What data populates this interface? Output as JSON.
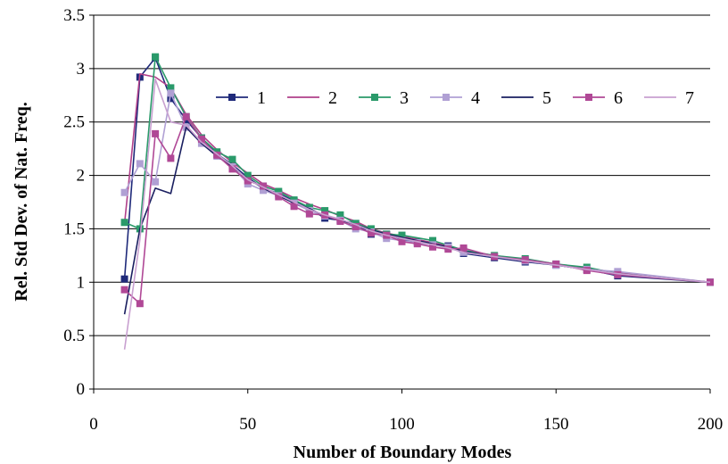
{
  "chart_data": {
    "type": "line",
    "title": "",
    "xlabel": "Number of Boundary Modes",
    "ylabel": "Rel. Std Dev. of Nat. Freq.",
    "xlim": [
      0,
      200
    ],
    "ylim": [
      0,
      3.5
    ],
    "xticks": [
      0,
      50,
      100,
      150,
      200
    ],
    "yticks": [
      0,
      0.5,
      1,
      1.5,
      2,
      2.5,
      3,
      3.5
    ],
    "xtick_labels": [
      "0",
      "50",
      "100",
      "150",
      "200"
    ],
    "ytick_labels": [
      "0",
      "0.5",
      "1",
      "1.5",
      "2",
      "2.5",
      "3",
      "3.5"
    ],
    "grid": "horizontal",
    "legend_position": "top-right",
    "series": [
      {
        "name": "1",
        "color": "#1f2a7a",
        "marker": "square",
        "x": [
          10,
          15,
          20,
          25,
          30,
          35,
          40,
          45,
          50,
          55,
          60,
          65,
          70,
          75,
          80,
          85,
          90,
          95,
          100,
          105,
          110,
          115,
          120,
          130,
          140,
          150,
          160,
          170,
          200
        ],
        "y": [
          1.03,
          2.92,
          3.1,
          2.72,
          2.52,
          2.35,
          2.2,
          2.1,
          1.98,
          1.88,
          1.83,
          1.76,
          1.69,
          1.6,
          1.58,
          1.55,
          1.45,
          1.45,
          1.4,
          1.38,
          1.36,
          1.34,
          1.27,
          1.23,
          1.19,
          1.16,
          1.12,
          1.06,
          1.0
        ]
      },
      {
        "name": "2",
        "color": "#b0408a",
        "marker": "none",
        "x": [
          10,
          15,
          20,
          25,
          30,
          35,
          40,
          45,
          50,
          55,
          60,
          65,
          70,
          75,
          80,
          85,
          90,
          95,
          100,
          105,
          110,
          115,
          120,
          130,
          140,
          150,
          160,
          170,
          200
        ],
        "y": [
          1.55,
          2.95,
          2.92,
          2.82,
          2.57,
          2.38,
          2.24,
          2.12,
          2.02,
          1.92,
          1.86,
          1.79,
          1.73,
          1.68,
          1.62,
          1.57,
          1.5,
          1.46,
          1.43,
          1.4,
          1.37,
          1.34,
          1.3,
          1.25,
          1.21,
          1.17,
          1.13,
          1.09,
          1.0
        ]
      },
      {
        "name": "3",
        "color": "#2a9a6a",
        "marker": "square",
        "x": [
          10,
          15,
          20,
          25,
          30,
          35,
          40,
          45,
          50,
          55,
          60,
          65,
          70,
          75,
          80,
          85,
          90,
          95,
          100,
          110,
          120,
          130,
          140,
          150,
          160,
          170,
          200
        ],
        "y": [
          1.56,
          1.5,
          3.11,
          2.82,
          2.55,
          2.35,
          2.22,
          2.15,
          2.0,
          1.9,
          1.85,
          1.77,
          1.7,
          1.67,
          1.63,
          1.55,
          1.5,
          1.45,
          1.44,
          1.39,
          1.3,
          1.25,
          1.22,
          1.17,
          1.14,
          1.08,
          1.0
        ]
      },
      {
        "name": "4",
        "color": "#b0a0d4",
        "marker": "square",
        "x": [
          10,
          15,
          20,
          25,
          30,
          35,
          40,
          45,
          50,
          55,
          60,
          65,
          70,
          75,
          80,
          85,
          90,
          95,
          100,
          105,
          110,
          115,
          120,
          130,
          140,
          150,
          160,
          170,
          200
        ],
        "y": [
          1.84,
          2.11,
          1.94,
          2.77,
          2.45,
          2.3,
          2.18,
          2.08,
          1.92,
          1.86,
          1.81,
          1.74,
          1.67,
          1.62,
          1.58,
          1.5,
          1.47,
          1.41,
          1.39,
          1.37,
          1.35,
          1.33,
          1.28,
          1.24,
          1.2,
          1.16,
          1.12,
          1.1,
          1.0
        ]
      },
      {
        "name": "5",
        "color": "#1a1f60",
        "marker": "none",
        "x": [
          10,
          15,
          20,
          25,
          30,
          35,
          40,
          45,
          50,
          55,
          60,
          65,
          70,
          75,
          80,
          85,
          90,
          95,
          100,
          105,
          110,
          115,
          120,
          130,
          140,
          150,
          160,
          170,
          200
        ],
        "y": [
          0.7,
          1.5,
          1.88,
          1.83,
          2.45,
          2.3,
          2.18,
          2.08,
          1.97,
          1.88,
          1.81,
          1.74,
          1.69,
          1.62,
          1.58,
          1.54,
          1.49,
          1.45,
          1.42,
          1.39,
          1.36,
          1.33,
          1.29,
          1.24,
          1.2,
          1.16,
          1.12,
          1.08,
          1.0
        ]
      },
      {
        "name": "6",
        "color": "#b04896",
        "marker": "square",
        "x": [
          10,
          15,
          20,
          25,
          30,
          35,
          40,
          45,
          50,
          55,
          60,
          65,
          70,
          75,
          80,
          85,
          90,
          95,
          100,
          105,
          110,
          115,
          120,
          130,
          140,
          150,
          160,
          170,
          200
        ],
        "y": [
          0.93,
          0.8,
          2.39,
          2.16,
          2.55,
          2.34,
          2.19,
          2.06,
          1.95,
          1.9,
          1.8,
          1.71,
          1.64,
          1.63,
          1.57,
          1.52,
          1.46,
          1.44,
          1.38,
          1.36,
          1.33,
          1.31,
          1.32,
          1.24,
          1.21,
          1.17,
          1.11,
          1.07,
          1.0
        ]
      },
      {
        "name": "7",
        "color": "#c8a0d0",
        "marker": "none",
        "x": [
          10,
          15,
          20,
          25,
          30,
          35,
          40,
          45,
          50,
          55,
          60,
          65,
          70,
          75,
          80,
          85,
          90,
          95,
          100,
          105,
          110,
          115,
          120,
          130,
          140,
          150,
          160,
          170,
          200
        ],
        "y": [
          0.37,
          1.4,
          2.9,
          2.5,
          2.47,
          2.31,
          2.2,
          2.09,
          1.96,
          1.89,
          1.82,
          1.75,
          1.68,
          1.63,
          1.59,
          1.54,
          1.48,
          1.44,
          1.41,
          1.38,
          1.35,
          1.32,
          1.28,
          1.24,
          1.2,
          1.16,
          1.12,
          1.08,
          1.0
        ]
      }
    ]
  }
}
